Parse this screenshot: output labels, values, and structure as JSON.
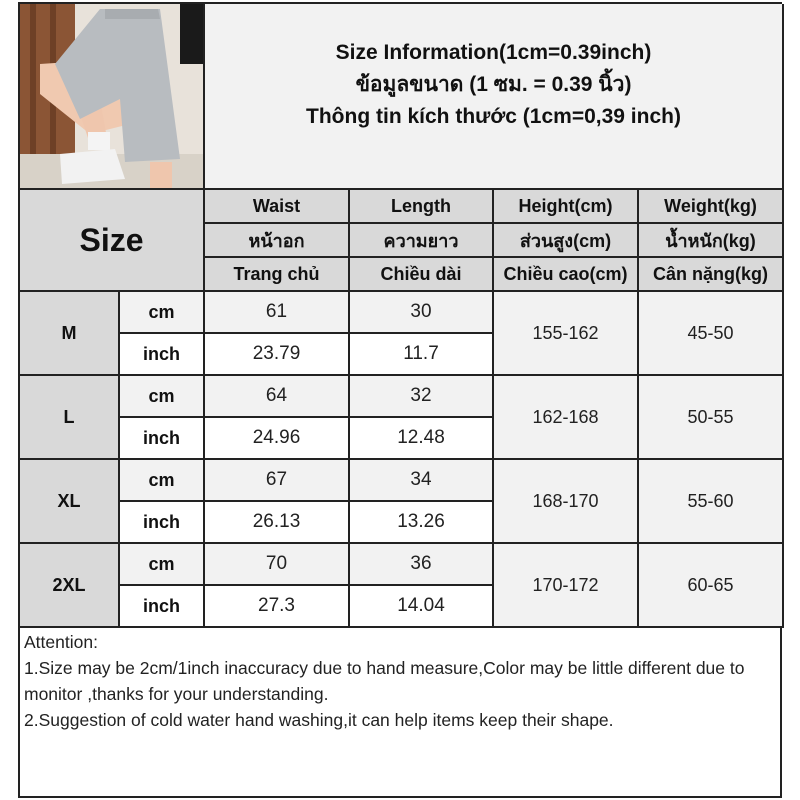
{
  "title": {
    "line1": "Size Information(1cm=0.39inch)",
    "line2": "ข้อมูลขนาด (1 ซม. = 0.39 นิ้ว)",
    "line3": "Thông tin kích thước (1cm=0,39 inch)"
  },
  "photo": {
    "alt": "grey wide-leg shorts product photo"
  },
  "size_label": "Size",
  "headers": [
    [
      "Waist",
      "หน้าอก",
      "Trang chủ"
    ],
    [
      "Length",
      "ความยาว",
      "Chiều dài"
    ],
    [
      "Height(cm)",
      "ส่วนสูง(cm)",
      "Chiều cao(cm)"
    ],
    [
      "Weight(kg)",
      "น้ำหนัก(kg)",
      "Cân nặng(kg)"
    ]
  ],
  "units": {
    "cm": "cm",
    "inch": "inch"
  },
  "rows": [
    {
      "size": "M",
      "cm": {
        "waist": "61",
        "length": "30"
      },
      "inch": {
        "waist": "23.79",
        "length": "11.7"
      },
      "height": "155-162",
      "weight": "45-50"
    },
    {
      "size": "L",
      "cm": {
        "waist": "64",
        "length": "32"
      },
      "inch": {
        "waist": "24.96",
        "length": "12.48"
      },
      "height": "162-168",
      "weight": "50-55"
    },
    {
      "size": "XL",
      "cm": {
        "waist": "67",
        "length": "34"
      },
      "inch": {
        "waist": "26.13",
        "length": "13.26"
      },
      "height": "168-170",
      "weight": "55-60"
    },
    {
      "size": "2XL",
      "cm": {
        "waist": "70",
        "length": "36"
      },
      "inch": {
        "waist": "27.3",
        "length": "14.04"
      },
      "height": "170-172",
      "weight": "60-65"
    }
  ],
  "attention": {
    "heading": "Attention:",
    "notes": [
      "1.Size may be 2cm/1inch inaccuracy due to hand measure,Color may be little different due to monitor ,thanks for your understanding.",
      "2.Suggestion of cold water hand washing,it can help items keep their shape."
    ]
  },
  "colors": {
    "header_bg": "#d9d9d9",
    "light_bg": "#f2f2f2",
    "border": "#222222"
  }
}
